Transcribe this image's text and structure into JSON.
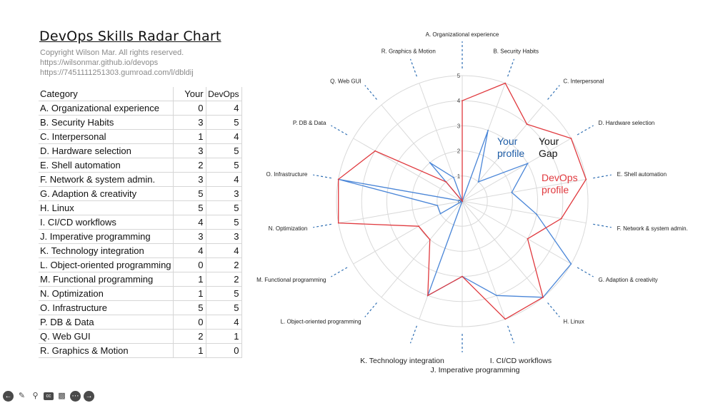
{
  "title": "DevOps Skills Radar Chart",
  "copyright_lines": [
    "Copyright Wilson Mar. All rights reserved.",
    "https://wilsonmar.github.io/devops",
    "https://7451111251303.gumroad.com/l/dbldij"
  ],
  "table": {
    "headers": [
      "Category",
      "Your",
      "DevOps"
    ],
    "rows": [
      [
        "A. Organizational experience",
        "0",
        "4"
      ],
      [
        "B. Security Habits",
        "3",
        "5"
      ],
      [
        "C. Interpersonal",
        "1",
        "4"
      ],
      [
        "D. Hardware selection",
        "3",
        "5"
      ],
      [
        "E. Shell automation",
        "2",
        "5"
      ],
      [
        "F. Network & system admin.",
        "3",
        "4"
      ],
      [
        "G. Adaption & creativity",
        "5",
        "3"
      ],
      [
        "H. Linux",
        "5",
        "5"
      ],
      [
        "I. CI/CD workflows",
        "4",
        "5"
      ],
      [
        "J. Imperative programming",
        "3",
        "3"
      ],
      [
        "K. Technology integration",
        "4",
        "4"
      ],
      [
        "L. Object-oriented programming",
        "0",
        "2"
      ],
      [
        "M. Functional programming",
        "1",
        "2"
      ],
      [
        "N. Optimization",
        "1",
        "5"
      ],
      [
        "O. Infrastructure",
        "5",
        "5"
      ],
      [
        "P. DB & Data",
        "0",
        "4"
      ],
      [
        "Q. Web GUI",
        "2",
        "1"
      ],
      [
        "R. Graphics & Motion",
        "1",
        "0"
      ]
    ]
  },
  "chart_data": {
    "type": "radar",
    "title": "DevOps Skills Radar Chart",
    "categories": [
      "A. Organizational experience",
      "B. Security Habits",
      "C. Interpersonal",
      "D. Hardware selection",
      "E. Shell automation",
      "F. Network & system admin.",
      "G. Adaption & creativity",
      "H. Linux",
      "I. CI/CD workflows",
      "J. Imperative programming",
      "K. Technology integration",
      "L. Object-oriented programming",
      "M. Functional programming",
      "N. Optimization",
      "O. Infrastructure",
      "P. DB & Data",
      "Q. Web GUI",
      "R. Graphics & Motion"
    ],
    "series": [
      {
        "name": "Your",
        "color": "#4a86d8",
        "values": [
          0,
          3,
          1,
          3,
          2,
          3,
          5,
          5,
          4,
          3,
          4,
          0,
          1,
          1,
          5,
          0,
          2,
          1
        ]
      },
      {
        "name": "DevOps",
        "color": "#e0393e",
        "values": [
          4,
          5,
          4,
          5,
          5,
          4,
          3,
          5,
          5,
          3,
          4,
          2,
          2,
          5,
          5,
          4,
          1,
          0
        ]
      }
    ],
    "rlim": [
      0,
      5
    ],
    "ticks": [
      "1",
      "2",
      "3",
      "4",
      "5"
    ],
    "origin_label": "0",
    "annotations": [
      {
        "lines": [
          "Your",
          "profile"
        ],
        "color": "#1f5ea8"
      },
      {
        "lines": [
          "Your",
          "Gap"
        ],
        "color": "#111111"
      },
      {
        "lines": [
          "DevOps",
          "profile"
        ],
        "color": "#e0393e"
      }
    ],
    "labels": [
      "A. Organizational experience",
      "B. Security Habits",
      "C. Interpersonal",
      "D. Hardware selection",
      "E. Shell automation",
      "F. Network & system admin.",
      "G. Adaption & creativity",
      "H. Linux",
      "I. CI/CD workflows",
      "J. Imperative programming",
      "K. Technology integration",
      "L. Object-oriented programming",
      "M. Functional programming",
      "N. Optimization",
      "O. Infrastructure",
      "P. DB & Data",
      "Q. Web GUI",
      "R. Graphics & Motion"
    ]
  },
  "toolbar": [
    "prev-icon",
    "pen-icon",
    "search-icon",
    "captions-icon",
    "video-icon",
    "more-icon",
    "next-icon"
  ]
}
